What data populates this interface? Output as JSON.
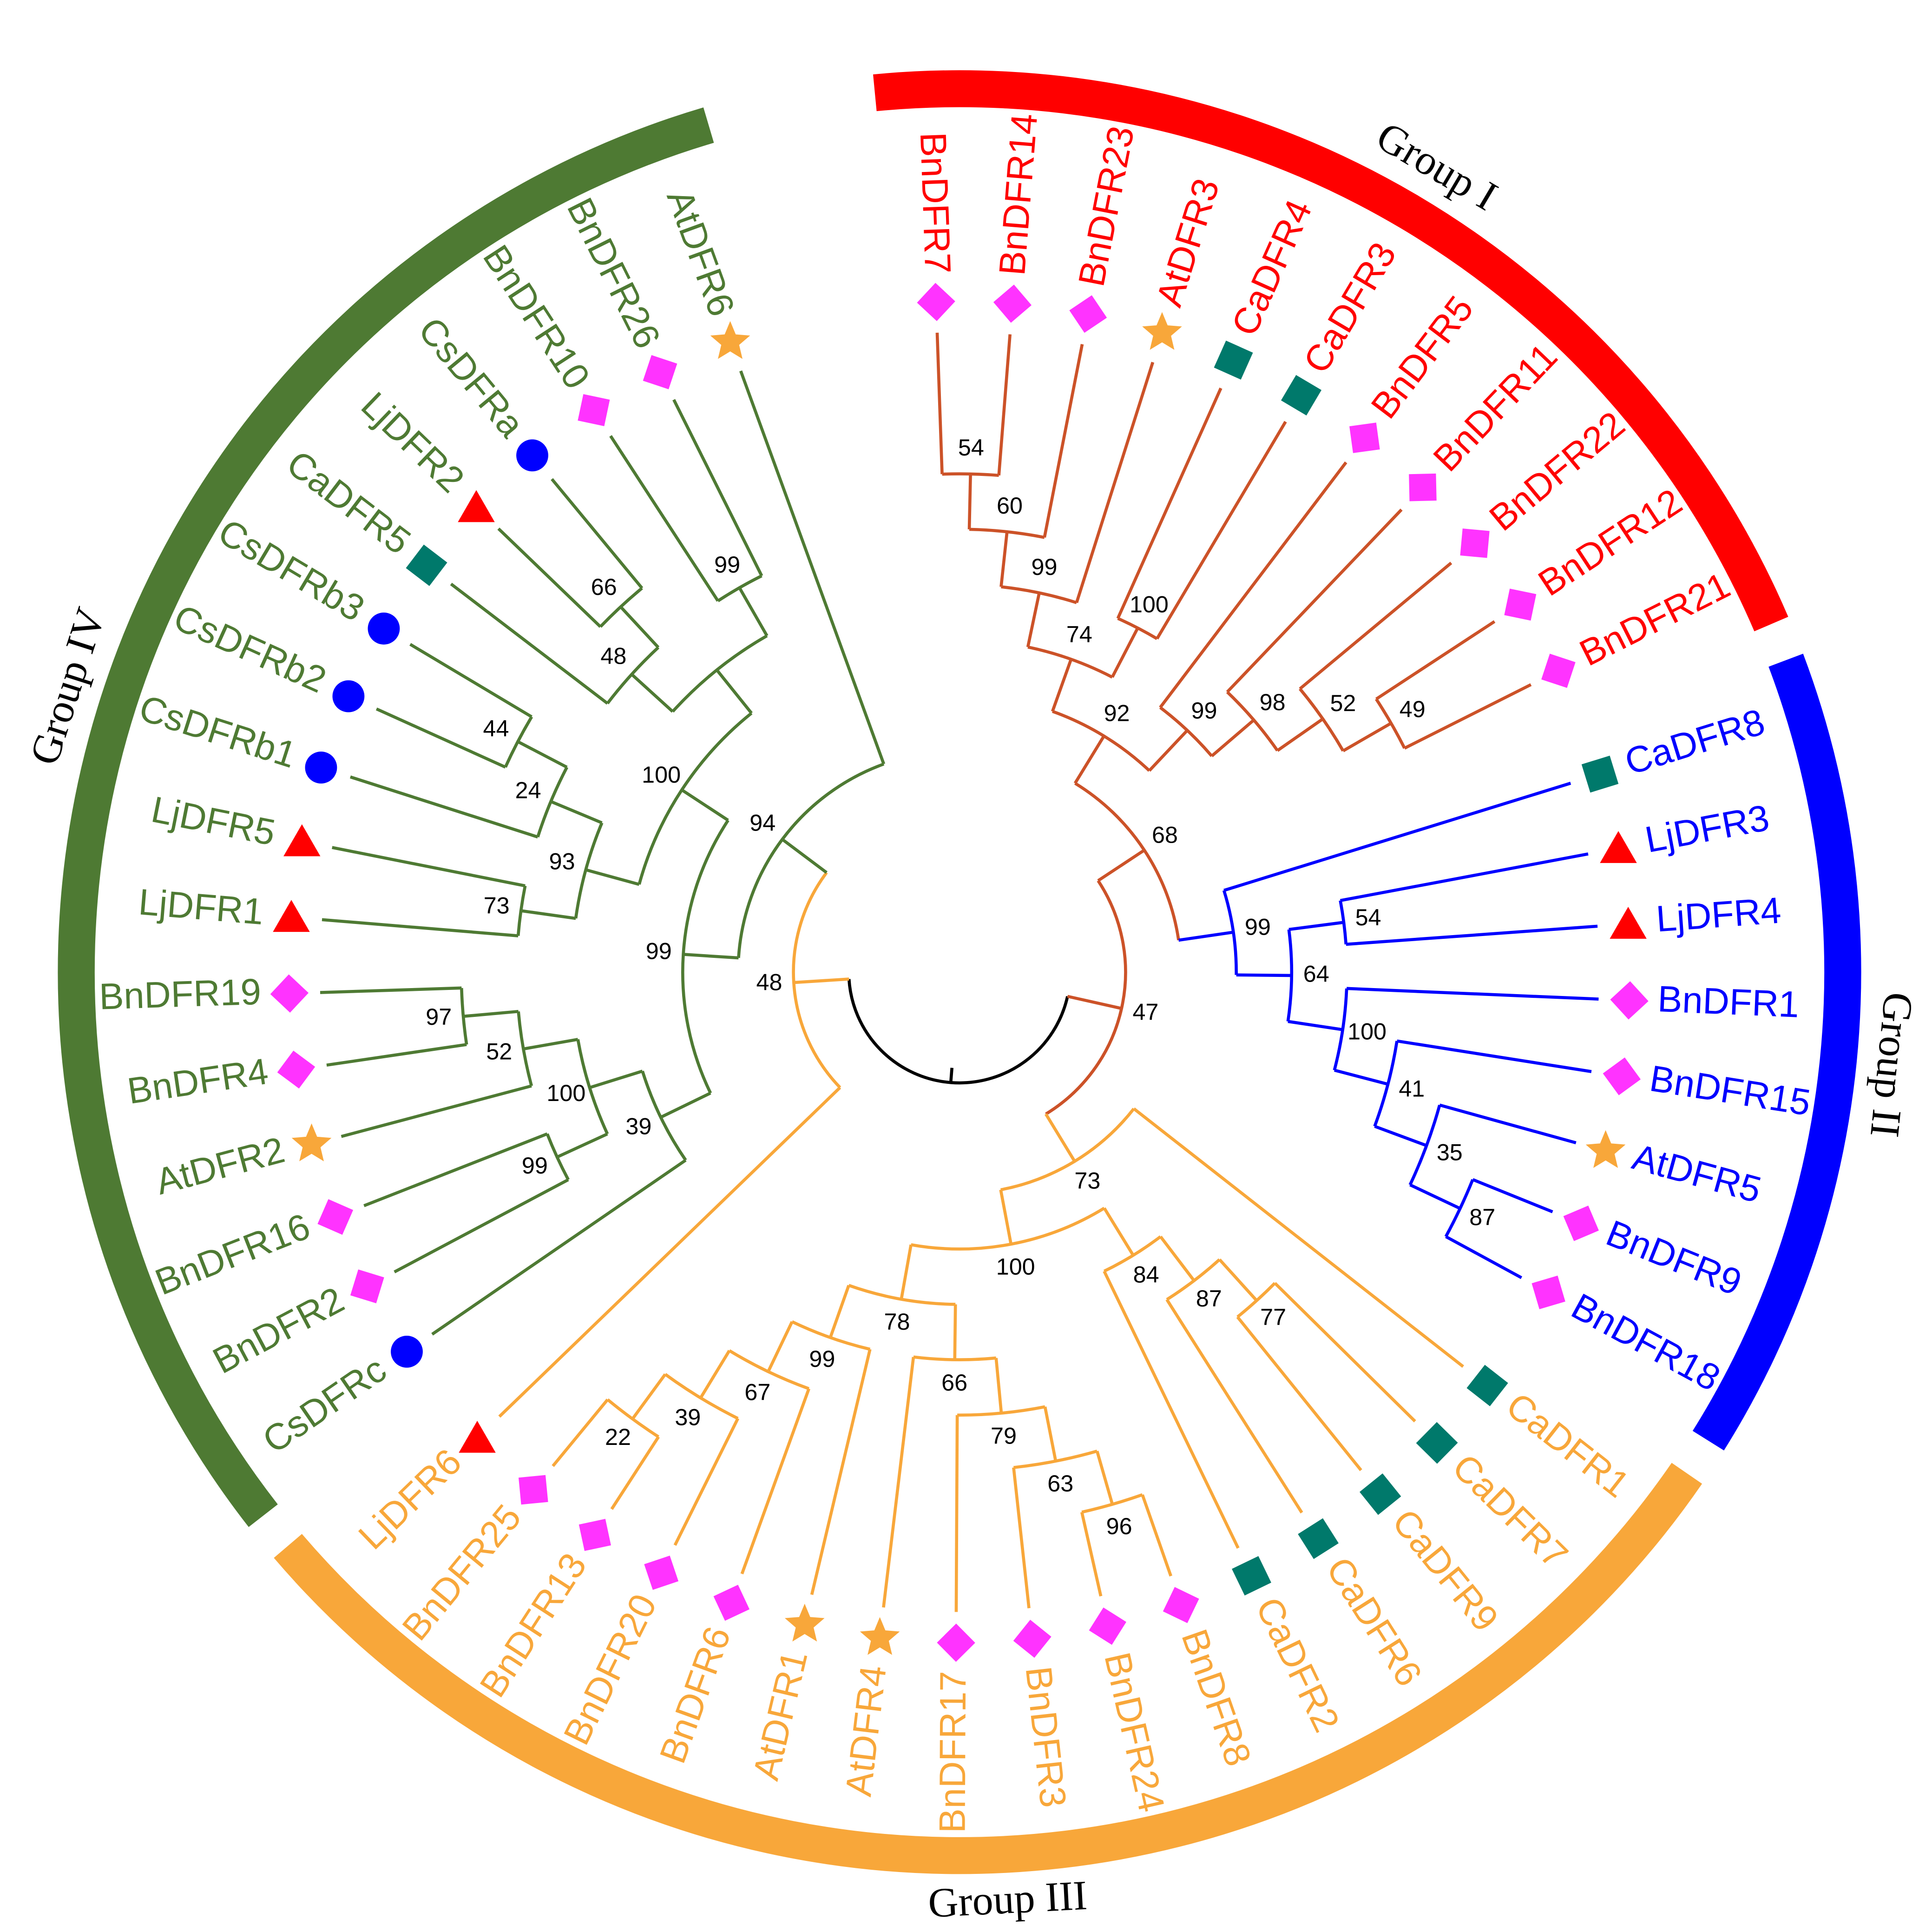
{
  "groups": [
    {
      "label": "Group I",
      "color": "#ff0000",
      "branch_color": "#cc5228"
    },
    {
      "label": "Group II",
      "color": "#0000ff",
      "branch_color": "#0000ff"
    },
    {
      "label": "Group III",
      "color": "#f8a73a",
      "branch_color": "#f8a73a"
    },
    {
      "label": "Group IV",
      "color": "#4e7a33",
      "branch_color": "#4e7a33"
    }
  ],
  "markers": {
    "diamond": "#ff33ff",
    "square": "#00796b",
    "circle": "#0000ff",
    "triangle": "#ff0000",
    "star": "#f8a73a"
  },
  "tree": {
    "children": [
      {
        "support": 47,
        "children": [
          {
            "support": 68,
            "children": [
              {
                "support": 92,
                "children": [
                  {
                    "support": 74,
                    "children": [
                      {
                        "support": 99,
                        "children": [
                          {
                            "support": 60,
                            "children": [
                              {
                                "support": 54,
                                "children": [
                                  {
                                    "label": "BnDFR7",
                                    "color": "#ff0000",
                                    "marker": "diamond"
                                  },
                                  {
                                    "label": "BnDFR14",
                                    "color": "#ff0000",
                                    "marker": "diamond"
                                  }
                                ]
                              },
                              {
                                "label": "BnDFR23",
                                "color": "#ff0000",
                                "marker": "diamond"
                              }
                            ]
                          },
                          {
                            "label": "AtDFR3",
                            "color": "#ff0000",
                            "marker": "star"
                          }
                        ]
                      },
                      {
                        "support": 100,
                        "children": [
                          {
                            "label": "CaDFR4",
                            "color": "#ff0000",
                            "marker": "square"
                          },
                          {
                            "label": "CaDFR3",
                            "color": "#ff0000",
                            "marker": "square"
                          }
                        ]
                      }
                    ]
                  },
                  {
                    "support": 99,
                    "children": [
                      {
                        "label": "BnDFR5",
                        "color": "#ff0000",
                        "marker": "diamond"
                      },
                      {
                        "support": 98,
                        "children": [
                          {
                            "label": "BnDFR11",
                            "color": "#ff0000",
                            "marker": "diamond"
                          },
                          {
                            "support": 52,
                            "children": [
                              {
                                "label": "BnDFR22",
                                "color": "#ff0000",
                                "marker": "diamond"
                              },
                              {
                                "support": 49,
                                "children": [
                                  {
                                    "label": "BnDFR12",
                                    "color": "#ff0000",
                                    "marker": "diamond"
                                  },
                                  {
                                    "label": "BnDFR21",
                                    "color": "#ff0000",
                                    "marker": "diamond"
                                  }
                                ]
                              }
                            ]
                          }
                        ]
                      }
                    ]
                  }
                ]
              },
              {
                "support": 99,
                "children": [
                  {
                    "label": "CaDFR8",
                    "color": "#0000ff",
                    "marker": "square"
                  },
                  {
                    "support": 64,
                    "children": [
                      {
                        "support": 54,
                        "children": [
                          {
                            "label": "LjDFR3",
                            "color": "#0000ff",
                            "marker": "triangle"
                          },
                          {
                            "label": "LjDFR4",
                            "color": "#0000ff",
                            "marker": "triangle"
                          }
                        ]
                      },
                      {
                        "support": 100,
                        "children": [
                          {
                            "label": "BnDFR1",
                            "color": "#0000ff",
                            "marker": "diamond"
                          },
                          {
                            "support": 41,
                            "children": [
                              {
                                "label": "BnDFR15",
                                "color": "#0000ff",
                                "marker": "diamond"
                              },
                              {
                                "support": 35,
                                "children": [
                                  {
                                    "label": "AtDFR5",
                                    "color": "#0000ff",
                                    "marker": "star"
                                  },
                                  {
                                    "support": 87,
                                    "children": [
                                      {
                                        "label": "BnDFR9",
                                        "color": "#0000ff",
                                        "marker": "diamond"
                                      },
                                      {
                                        "label": "BnDFR18",
                                        "color": "#0000ff",
                                        "marker": "diamond"
                                      }
                                    ]
                                  }
                                ]
                              }
                            ]
                          }
                        ]
                      }
                    ]
                  }
                ]
              }
            ]
          },
          {
            "support": 73,
            "children": [
              {
                "label": "CaDFR1",
                "color": "#f8a73a",
                "marker": "square"
              },
              {
                "support": 100,
                "children": [
                  {
                    "support": 84,
                    "children": [
                      {
                        "support": 87,
                        "children": [
                          {
                            "support": 77,
                            "children": [
                              {
                                "label": "CaDFR7",
                                "color": "#f8a73a",
                                "marker": "square"
                              },
                              {
                                "label": "CaDFR9",
                                "color": "#f8a73a",
                                "marker": "square"
                              }
                            ]
                          },
                          {
                            "label": "CaDFR6",
                            "color": "#f8a73a",
                            "marker": "square"
                          }
                        ]
                      },
                      {
                        "label": "CaDFR2",
                        "color": "#f8a73a",
                        "marker": "square"
                      }
                    ]
                  },
                  {
                    "support": 78,
                    "children": [
                      {
                        "support": 66,
                        "children": [
                          {
                            "support": 79,
                            "children": [
                              {
                                "support": 63,
                                "children": [
                                  {
                                    "support": 96,
                                    "children": [
                                      {
                                        "label": "BnDFR8",
                                        "color": "#f8a73a",
                                        "marker": "diamond"
                                      },
                                      {
                                        "label": "BnDFR24",
                                        "color": "#f8a73a",
                                        "marker": "diamond"
                                      }
                                    ]
                                  },
                                  {
                                    "label": "BnDFR3",
                                    "color": "#f8a73a",
                                    "marker": "diamond"
                                  }
                                ]
                              },
                              {
                                "label": "BnDFR17",
                                "color": "#f8a73a",
                                "marker": "diamond"
                              }
                            ]
                          },
                          {
                            "label": "AtDFR4",
                            "color": "#f8a73a",
                            "marker": "star"
                          }
                        ]
                      },
                      {
                        "support": 99,
                        "children": [
                          {
                            "label": "AtDFR1",
                            "color": "#f8a73a",
                            "marker": "star"
                          },
                          {
                            "support": 67,
                            "children": [
                              {
                                "label": "BnDFR6",
                                "color": "#f8a73a",
                                "marker": "diamond"
                              },
                              {
                                "support": 39,
                                "children": [
                                  {
                                    "label": "BnDFR20",
                                    "color": "#f8a73a",
                                    "marker": "diamond"
                                  },
                                  {
                                    "support": 22,
                                    "children": [
                                      {
                                        "label": "BnDFR13",
                                        "color": "#f8a73a",
                                        "marker": "diamond"
                                      },
                                      {
                                        "label": "BnDFR25",
                                        "color": "#f8a73a",
                                        "marker": "diamond"
                                      }
                                    ]
                                  }
                                ]
                              }
                            ]
                          }
                        ]
                      }
                    ]
                  }
                ]
              }
            ]
          }
        ]
      },
      {
        "support": 48,
        "children": [
          {
            "label": "LjDFR6",
            "color": "#f8a73a",
            "marker": "triangle"
          },
          {
            "support": 94,
            "children": [
              {
                "support": 99,
                "children": [
                  {
                    "support": 39,
                    "children": [
                      {
                        "label": "CsDFRc",
                        "color": "#4e7a33",
                        "marker": "circle"
                      },
                      {
                        "support": 100,
                        "children": [
                          {
                            "support": 99,
                            "children": [
                              {
                                "label": "BnDFR2",
                                "color": "#4e7a33",
                                "marker": "diamond"
                              },
                              {
                                "label": "BnDFR16",
                                "color": "#4e7a33",
                                "marker": "diamond"
                              }
                            ]
                          },
                          {
                            "support": 52,
                            "children": [
                              {
                                "label": "AtDFR2",
                                "color": "#4e7a33",
                                "marker": "star"
                              },
                              {
                                "support": 97,
                                "children": [
                                  {
                                    "label": "BnDFR4",
                                    "color": "#4e7a33",
                                    "marker": "diamond"
                                  },
                                  {
                                    "label": "BnDFR19",
                                    "color": "#4e7a33",
                                    "marker": "diamond"
                                  }
                                ]
                              }
                            ]
                          }
                        ]
                      }
                    ]
                  },
                  {
                    "support": 100,
                    "children": [
                      {
                        "support": 93,
                        "children": [
                          {
                            "support": 73,
                            "children": [
                              {
                                "label": "LjDFR1",
                                "color": "#4e7a33",
                                "marker": "triangle"
                              },
                              {
                                "label": "LjDFR5",
                                "color": "#4e7a33",
                                "marker": "triangle"
                              }
                            ]
                          },
                          {
                            "support": 24,
                            "children": [
                              {
                                "label": "CsDFRb1",
                                "color": "#4e7a33",
                                "marker": "circle"
                              },
                              {
                                "support": 44,
                                "children": [
                                  {
                                    "label": "CsDFRb2",
                                    "color": "#4e7a33",
                                    "marker": "circle"
                                  },
                                  {
                                    "label": "CsDFRb3",
                                    "color": "#4e7a33",
                                    "marker": "circle"
                                  }
                                ]
                              }
                            ]
                          }
                        ]
                      },
                      {
                        "children": [
                          {
                            "support": 48,
                            "children": [
                              {
                                "label": "CaDFR5",
                                "color": "#4e7a33",
                                "marker": "square"
                              },
                              {
                                "support": 66,
                                "children": [
                                  {
                                    "label": "LjDFR2",
                                    "color": "#4e7a33",
                                    "marker": "triangle"
                                  },
                                  {
                                    "label": "CsDFRa",
                                    "color": "#4e7a33",
                                    "marker": "circle"
                                  }
                                ]
                              }
                            ]
                          },
                          {
                            "support": 99,
                            "children": [
                              {
                                "label": "BnDFR10",
                                "color": "#4e7a33",
                                "marker": "diamond"
                              },
                              {
                                "label": "BnDFR26",
                                "color": "#4e7a33",
                                "marker": "diamond"
                              }
                            ]
                          }
                        ]
                      }
                    ]
                  }
                ]
              },
              {
                "label": "AtDFR6",
                "color": "#4e7a33",
                "marker": "star"
              }
            ]
          }
        ]
      }
    ]
  }
}
